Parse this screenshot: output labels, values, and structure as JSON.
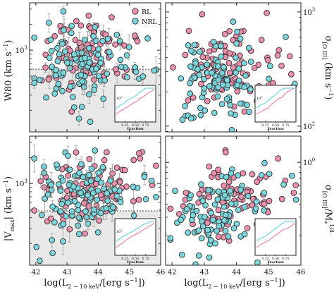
{
  "colors": {
    "rl": "#ee8fae",
    "nrl": "#79d6dc",
    "edge": "#333333",
    "errorbar": "#9a9a9a",
    "shade": "#e8e8e8",
    "threshold": "#444444"
  },
  "legend": {
    "rl": "RL",
    "nrl": "NRL"
  },
  "chart_data": [
    {
      "type": "scatter",
      "panel": "top-left",
      "ylabel": "W80 (km s⁻¹)",
      "xlabel": "",
      "xlim": [
        41.8,
        46.0
      ],
      "ylim_log10": [
        2.05,
        3.55
      ],
      "yscale": "log",
      "yticks": [
        {
          "label": "10³",
          "value": 1000
        }
      ],
      "xticks": [
        "42",
        "43",
        "44",
        "45",
        "46"
      ],
      "threshold_y": 600,
      "shaded_below_threshold": true,
      "error_bars": true,
      "series": [
        {
          "name": "RL",
          "seed": 11,
          "count": 95
        },
        {
          "name": "NRL",
          "seed": 23,
          "count": 115
        }
      ],
      "inset": {
        "xlabel": "Fraction",
        "ylabel": "10³",
        "xticks": [
          "0.25",
          "0.50",
          "0.75"
        ]
      }
    },
    {
      "type": "scatter",
      "panel": "top-right",
      "ylabel": "σ[O III] (km s⁻¹)",
      "xlabel": "",
      "xlim": [
        41.8,
        46.0
      ],
      "ylim_log10": [
        1.95,
        3.08
      ],
      "yscale": "log",
      "yticks": [
        {
          "label": "10³",
          "value": 1000
        },
        {
          "label": "10²",
          "value": 100
        }
      ],
      "xticks": [
        "42",
        "43",
        "44",
        "45",
        "46"
      ],
      "series": [
        {
          "name": "RL",
          "seed": 37,
          "count": 95
        },
        {
          "name": "NRL",
          "seed": 41,
          "count": 110
        }
      ],
      "inset": {
        "xlabel": "Fraction",
        "ylabel": "10²",
        "xticks": [
          "0.25",
          "0.50",
          "0.75"
        ]
      }
    },
    {
      "type": "scatter",
      "panel": "bottom-left",
      "ylabel": "|Vmax| (km s⁻¹)",
      "xlabel": "log(L2−10 keV/[erg s⁻¹])",
      "xlim": [
        41.8,
        46.0
      ],
      "ylim_log10": [
        2.05,
        3.55
      ],
      "yscale": "log",
      "yticks": [
        {
          "label": "10³",
          "value": 1000
        }
      ],
      "xticks": [
        "42",
        "43",
        "44",
        "45",
        "46"
      ],
      "threshold_y": 480,
      "shaded_below_threshold": true,
      "error_bars": true,
      "series": [
        {
          "name": "RL",
          "seed": 53,
          "count": 95
        },
        {
          "name": "NRL",
          "seed": 67,
          "count": 115
        }
      ],
      "inset": {
        "xlabel": "Fraction",
        "ylabel": "10³",
        "xticks": [
          "0.25",
          "0.50",
          "0.75"
        ]
      }
    },
    {
      "type": "scatter",
      "panel": "bottom-right",
      "ylabel": "σ[O III]/M*¹ᐟ⁴",
      "xlabel": "log(L2−10 keV/[erg s⁻¹])",
      "xlim": [
        41.8,
        46.0
      ],
      "ylim_log10": [
        -0.98,
        0.25
      ],
      "yscale": "log",
      "yticks": [
        {
          "label": "10⁰",
          "value": 1
        }
      ],
      "xticks": [
        "42",
        "43",
        "44",
        "45",
        "46"
      ],
      "series": [
        {
          "name": "RL",
          "seed": 71,
          "count": 90
        },
        {
          "name": "NRL",
          "seed": 83,
          "count": 105
        }
      ],
      "inset": {
        "xlabel": "Fraction",
        "ylabel": "",
        "xticks": [
          "0.25",
          "0.50",
          "0.75"
        ]
      }
    }
  ],
  "labels": {
    "tl_ylabel_main": "W80 (km s",
    "tl_ylabel_sup": "−1",
    "tl_ylabel_end": ")",
    "tr_ylabel_main": "σ",
    "tr_ylabel_sub": "[O III]",
    "tr_ylabel_end": " (km s",
    "tr_ylabel_sup": "−1",
    "tr_ylabel_close": ")",
    "bl_ylabel_main": "|V",
    "bl_ylabel_sub": "max",
    "bl_ylabel_end": "| (km s",
    "bl_ylabel_sup": "−1",
    "bl_ylabel_close": ")",
    "br_ylabel_main": "σ",
    "br_ylabel_sub": "[O III]",
    "br_ylabel_mid": "/M",
    "br_ylabel_sub2": "*",
    "br_ylabel_sup": "1/4",
    "xlabel_main": "log(L",
    "xlabel_sub": "2 − 10 keV",
    "xlabel_end": "/[erg s",
    "xlabel_sup": "−1",
    "xlabel_close": "])",
    "tick_1e3": "10",
    "tick_1e3_exp": "3",
    "tick_1e2": "10",
    "tick_1e2_exp": "2",
    "tick_1e0": "10",
    "tick_1e0_exp": "0",
    "x42": "42",
    "x43": "43",
    "x44": "44",
    "x45": "45",
    "x46": "46",
    "inset_fraction": "Fraction",
    "inset_025": "0.25",
    "inset_050": "0.50",
    "inset_075": "0.75",
    "inset_tick_10": "10",
    "inset_tick_3": "3",
    "inset_tick_2": "2"
  }
}
